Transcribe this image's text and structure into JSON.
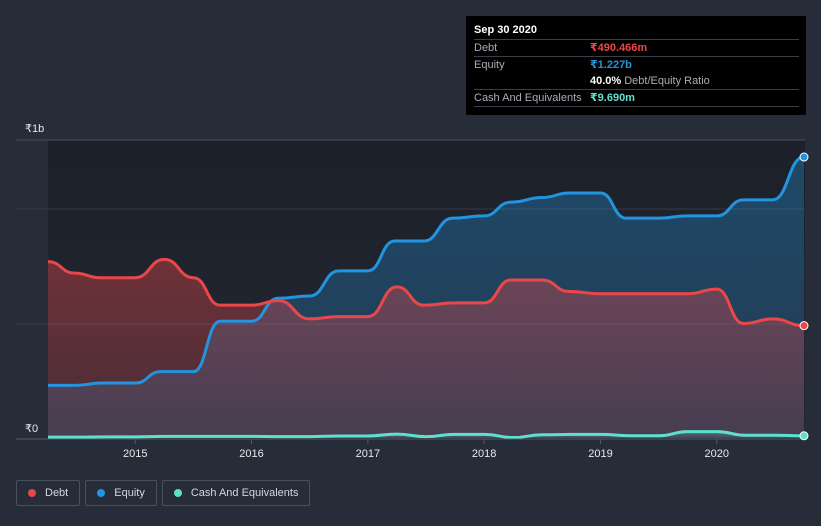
{
  "tooltip": {
    "date": "Sep 30 2020",
    "rows": [
      {
        "label": "Debt",
        "value": "₹490.466m",
        "color": "#e9474a"
      },
      {
        "label": "Equity",
        "value": "₹1.227b",
        "color": "#2394df"
      },
      {
        "label": "",
        "ratio_value": "40.0%",
        "ratio_label": "Debt/Equity Ratio"
      },
      {
        "label": "Cash And Equivalents",
        "value": "₹9.690m",
        "color": "#5ce1cc"
      }
    ]
  },
  "legend": [
    {
      "label": "Debt",
      "color": "#e9474a"
    },
    {
      "label": "Equity",
      "color": "#2394df"
    },
    {
      "label": "Cash And Equivalents",
      "color": "#5ce1cc"
    }
  ],
  "chart_data": {
    "type": "area",
    "title": "",
    "xlabel": "",
    "ylabel": "",
    "unit": "₹ billions",
    "y_tick_labels": [
      "₹0",
      "₹1b"
    ],
    "x_tick_labels": [
      "2015",
      "2016",
      "2017",
      "2018",
      "2019",
      "2020"
    ],
    "x_ticks": [
      2015,
      2016,
      2017,
      2018,
      2019,
      2020
    ],
    "xlim": [
      2014.25,
      2020.75
    ],
    "ylim": [
      0,
      1.3
    ],
    "grid": true,
    "legend_position": "bottom-left",
    "series": [
      {
        "name": "Debt",
        "color": "#e9474a",
        "x": [
          2014.25,
          2014.48,
          2014.7,
          2015.0,
          2015.25,
          2015.5,
          2015.73,
          2016.0,
          2016.23,
          2016.5,
          2016.75,
          2017.0,
          2017.25,
          2017.48,
          2017.75,
          2018.0,
          2018.23,
          2018.5,
          2018.73,
          2019.0,
          2019.2,
          2019.5,
          2019.75,
          2020.0,
          2020.23,
          2020.48,
          2020.75
        ],
        "values": [
          0.77,
          0.72,
          0.7,
          0.7,
          0.78,
          0.7,
          0.58,
          0.58,
          0.6,
          0.52,
          0.53,
          0.53,
          0.66,
          0.58,
          0.59,
          0.59,
          0.69,
          0.69,
          0.64,
          0.63,
          0.63,
          0.63,
          0.63,
          0.65,
          0.5,
          0.52,
          0.490466
        ]
      },
      {
        "name": "Equity",
        "color": "#2394df",
        "x": [
          2014.25,
          2014.48,
          2014.72,
          2015.0,
          2015.22,
          2015.5,
          2015.73,
          2016.0,
          2016.23,
          2016.5,
          2016.75,
          2017.0,
          2017.23,
          2017.48,
          2017.73,
          2018.0,
          2018.23,
          2018.5,
          2018.73,
          2019.0,
          2019.22,
          2019.5,
          2019.75,
          2020.0,
          2020.23,
          2020.48,
          2020.75
        ],
        "values": [
          0.23,
          0.23,
          0.24,
          0.24,
          0.29,
          0.29,
          0.51,
          0.51,
          0.61,
          0.62,
          0.73,
          0.73,
          0.86,
          0.86,
          0.96,
          0.97,
          1.03,
          1.05,
          1.07,
          1.07,
          0.96,
          0.96,
          0.97,
          0.97,
          1.04,
          1.04,
          1.227
        ]
      },
      {
        "name": "Cash And Equivalents",
        "color": "#5ce1cc",
        "x": [
          2014.25,
          2014.5,
          2014.75,
          2015.0,
          2015.25,
          2015.5,
          2015.75,
          2016.0,
          2016.25,
          2016.5,
          2016.75,
          2017.0,
          2017.25,
          2017.5,
          2017.75,
          2018.0,
          2018.25,
          2018.5,
          2018.75,
          2019.0,
          2019.25,
          2019.5,
          2019.75,
          2020.0,
          2020.25,
          2020.5,
          2020.75
        ],
        "values": [
          0.004,
          0.004,
          0.005,
          0.005,
          0.007,
          0.007,
          0.007,
          0.007,
          0.006,
          0.006,
          0.009,
          0.009,
          0.017,
          0.006,
          0.016,
          0.016,
          0.002,
          0.014,
          0.016,
          0.016,
          0.01,
          0.01,
          0.028,
          0.028,
          0.012,
          0.012,
          0.00969
        ]
      }
    ]
  }
}
